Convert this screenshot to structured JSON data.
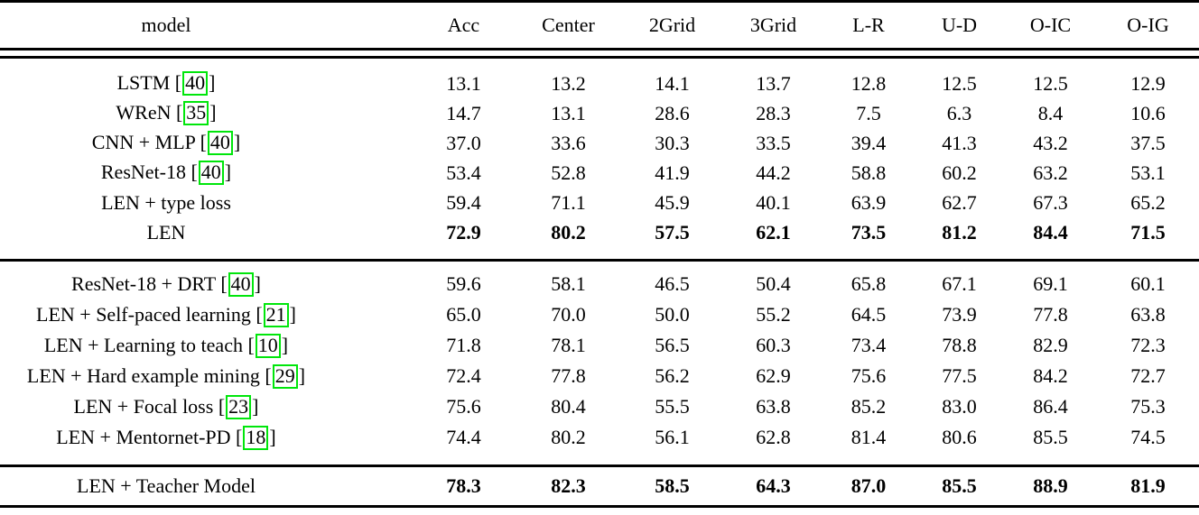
{
  "table": {
    "columns": [
      "model",
      "Acc",
      "Center",
      "2Grid",
      "3Grid",
      "L-R",
      "U-D",
      "O-IC",
      "O-IG"
    ],
    "groups": [
      {
        "rows": [
          {
            "model": "LSTM",
            "cite": "40",
            "bold": false,
            "values": [
              "13.1",
              "13.2",
              "14.1",
              "13.7",
              "12.8",
              "12.5",
              "12.5",
              "12.9"
            ]
          },
          {
            "model": "WReN",
            "cite": "35",
            "bold": false,
            "values": [
              "14.7",
              "13.1",
              "28.6",
              "28.3",
              "7.5",
              "6.3",
              "8.4",
              "10.6"
            ]
          },
          {
            "model": "CNN + MLP",
            "cite": "40",
            "bold": false,
            "values": [
              "37.0",
              "33.6",
              "30.3",
              "33.5",
              "39.4",
              "41.3",
              "43.2",
              "37.5"
            ]
          },
          {
            "model": "ResNet-18",
            "cite": "40",
            "bold": false,
            "values": [
              "53.4",
              "52.8",
              "41.9",
              "44.2",
              "58.8",
              "60.2",
              "63.2",
              "53.1"
            ]
          },
          {
            "model": "LEN + type loss",
            "cite": "",
            "bold": false,
            "values": [
              "59.4",
              "71.1",
              "45.9",
              "40.1",
              "63.9",
              "62.7",
              "67.3",
              "65.2"
            ]
          },
          {
            "model": "LEN",
            "cite": "",
            "bold": true,
            "values": [
              "72.9",
              "80.2",
              "57.5",
              "62.1",
              "73.5",
              "81.2",
              "84.4",
              "71.5"
            ]
          }
        ]
      },
      {
        "rows": [
          {
            "model": "ResNet-18 + DRT",
            "cite": "40",
            "bold": false,
            "values": [
              "59.6",
              "58.1",
              "46.5",
              "50.4",
              "65.8",
              "67.1",
              "69.1",
              "60.1"
            ]
          },
          {
            "model": "LEN + Self-paced learning",
            "cite": "21",
            "bold": false,
            "values": [
              "65.0",
              "70.0",
              "50.0",
              "55.2",
              "64.5",
              "73.9",
              "77.8",
              "63.8"
            ]
          },
          {
            "model": "LEN + Learning to teach",
            "cite": "10",
            "bold": false,
            "values": [
              "71.8",
              "78.1",
              "56.5",
              "60.3",
              "73.4",
              "78.8",
              "82.9",
              "72.3"
            ]
          },
          {
            "model": "LEN + Hard example mining",
            "cite": "29",
            "bold": false,
            "values": [
              "72.4",
              "77.8",
              "56.2",
              "62.9",
              "75.6",
              "77.5",
              "84.2",
              "72.7"
            ]
          },
          {
            "model": "LEN + Focal loss",
            "cite": "23",
            "bold": false,
            "values": [
              "75.6",
              "80.4",
              "55.5",
              "63.8",
              "85.2",
              "83.0",
              "86.4",
              "75.3"
            ]
          },
          {
            "model": "LEN + Mentornet-PD",
            "cite": "18",
            "bold": false,
            "values": [
              "74.4",
              "80.2",
              "56.1",
              "62.8",
              "81.4",
              "80.6",
              "85.5",
              "74.5"
            ]
          }
        ]
      },
      {
        "rows": [
          {
            "model": "LEN + Teacher Model",
            "cite": "",
            "bold": true,
            "values": [
              "78.3",
              "82.3",
              "58.5",
              "64.3",
              "87.0",
              "85.5",
              "88.9",
              "81.9"
            ]
          }
        ]
      }
    ]
  },
  "colors": {
    "citation_box_border": "#00e60b",
    "text": "#000000",
    "background": "#ffffff",
    "rule": "#000000"
  }
}
